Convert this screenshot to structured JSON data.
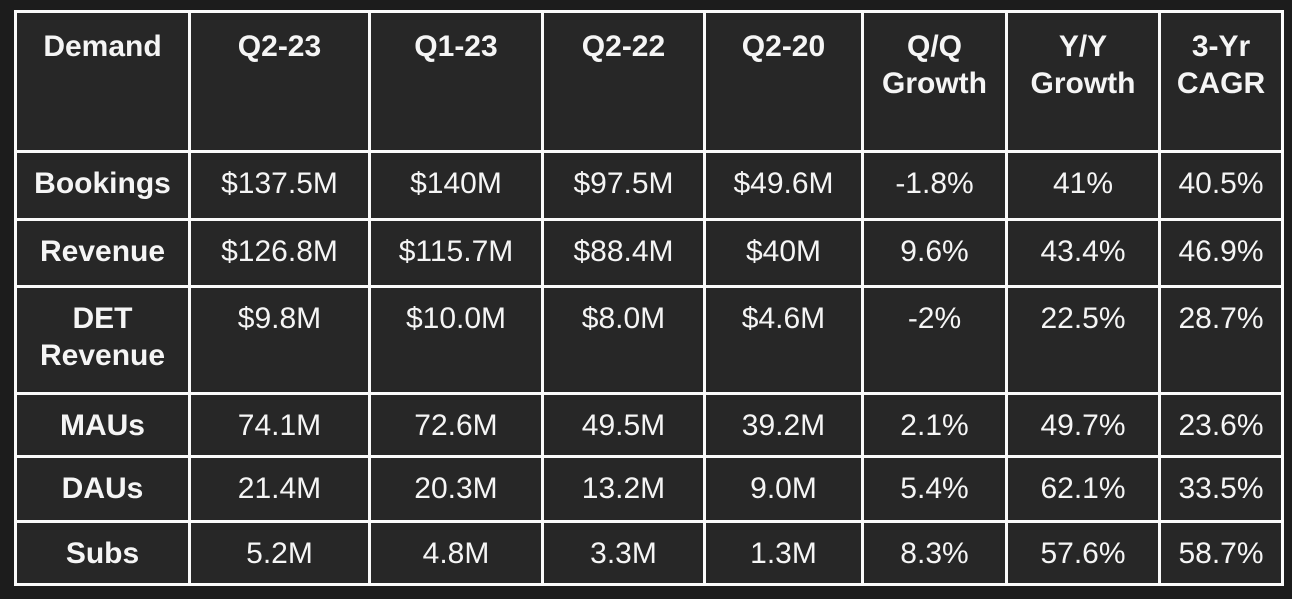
{
  "chart_data": {
    "type": "table",
    "title": "Demand",
    "columns": [
      "Demand",
      "Q2-23",
      "Q1-23",
      "Q2-22",
      "Q2-20",
      "Q/Q Growth",
      "Y/Y Growth",
      "3-Yr CAGR"
    ],
    "rows": [
      {
        "label": "Bookings",
        "values": [
          "$137.5M",
          "$140M",
          "$97.5M",
          "$49.6M",
          "-1.8%",
          "41%",
          "40.5%"
        ]
      },
      {
        "label": "Revenue",
        "values": [
          "$126.8M",
          "$115.7M",
          "$88.4M",
          "$40M",
          "9.6%",
          "43.4%",
          "46.9%"
        ]
      },
      {
        "label": "DET Revenue",
        "values": [
          "$9.8M",
          "$10.0M",
          "$8.0M",
          "$4.6M",
          "-2%",
          "22.5%",
          "28.7%"
        ]
      },
      {
        "label": "MAUs",
        "values": [
          "74.1M",
          "72.6M",
          "49.5M",
          "39.2M",
          "2.1%",
          "49.7%",
          "23.6%"
        ]
      },
      {
        "label": "DAUs",
        "values": [
          "21.4M",
          "20.3M",
          "13.2M",
          "9.0M",
          "5.4%",
          "62.1%",
          "33.5%"
        ]
      },
      {
        "label": "Subs",
        "values": [
          "5.2M",
          "4.8M",
          "3.3M",
          "1.3M",
          "8.3%",
          "57.6%",
          "58.7%"
        ]
      }
    ]
  },
  "colors": {
    "page_background": "#1c1c1c",
    "cell_background": "#272727",
    "border": "#fafafa",
    "text": "#f5f5f5"
  }
}
